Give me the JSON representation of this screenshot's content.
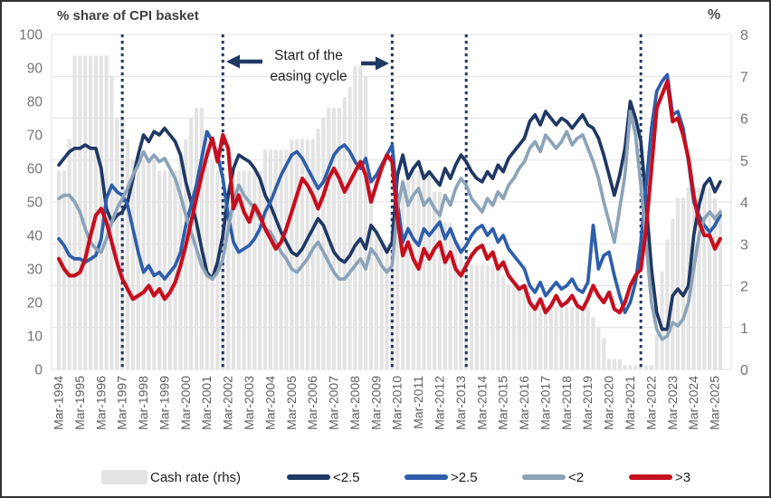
{
  "header": {
    "left_title": "% share of CPI basket",
    "right_title": "%"
  },
  "annotation": {
    "line1": "Start of the",
    "line2": "easing cycle"
  },
  "legend": {
    "position": "bottom",
    "items": [
      {
        "key": "cash_rate",
        "label": "Cash rate (rhs)",
        "type": "bar",
        "color": "#e4e4e4"
      },
      {
        "key": "lt_2_5",
        "label": "<2.5",
        "type": "line",
        "color": "#1f3864"
      },
      {
        "key": "gt_2_5",
        "label": ">2.5",
        "type": "line",
        "color": "#2e5eaa"
      },
      {
        "key": "lt_2",
        "label": "<2",
        "type": "line",
        "color": "#8ca3b8"
      },
      {
        "key": "gt_3",
        "label": ">3",
        "type": "line",
        "color": "#c50f1f"
      }
    ]
  },
  "colors": {
    "gridline": "#e1e1e1",
    "vline": "#1f3864",
    "arrow": "#1f3864",
    "tick_text": "#757575",
    "x_tick_text": "#5f5f5f"
  },
  "chart_data": {
    "type": "line",
    "subtype": "quarterly lines with cash-rate bar shading",
    "x_frequency": "quarterly",
    "x_start": "Mar-1994",
    "x_end": "Jun-2025",
    "grid": "horizontal",
    "legend_position": "bottom",
    "x_tick_labels": [
      "Mar-1994",
      "Mar-1995",
      "Mar-1996",
      "Mar-1997",
      "Mar-1998",
      "Mar-1999",
      "Mar-2000",
      "Mar-2001",
      "Mar-2002",
      "Mar-2003",
      "Mar-2004",
      "Mar-2005",
      "Mar-2006",
      "Mar-2007",
      "Mar-2008",
      "Mar-2009",
      "Mar-2010",
      "Mar-2011",
      "Mar-2012",
      "Mar-2013",
      "Mar-2014",
      "Mar-2015",
      "Mar-2016",
      "Mar-2017",
      "Mar-2018",
      "Mar-2019",
      "Mar-2020",
      "Mar-2021",
      "Mar-2022",
      "Mar-2023",
      "Mar-2024",
      "Mar-2025"
    ],
    "left_axis": {
      "title": "% share of CPI basket",
      "range": [
        0,
        100
      ],
      "ticks": [
        0,
        10,
        20,
        30,
        40,
        50,
        60,
        70,
        80,
        90,
        100
      ]
    },
    "right_axis": {
      "title": "%",
      "range": [
        0,
        8
      ],
      "ticks": [
        0,
        1,
        2,
        3,
        4,
        5,
        6,
        7,
        8
      ]
    },
    "vlines": {
      "style": "dotted",
      "color": "#1f3864",
      "quarter_indices": [
        12,
        31,
        63,
        77,
        110
      ],
      "at_labels": [
        "Mar-1997",
        "Dec-2001",
        "Dec-2009",
        "Jun-2013",
        "Sep-2021"
      ]
    },
    "annotation": {
      "text": "Start of the easing cycle",
      "arrow_targets": [
        "Dec-2001",
        "Dec-2009"
      ]
    },
    "series": [
      {
        "key": "cash_rate",
        "name": "Cash rate (rhs)",
        "type": "bar",
        "axis": "right",
        "color": "#e4e4e4",
        "values": [
          4.75,
          4.75,
          5.5,
          7.5,
          7.5,
          7.5,
          7.5,
          7.5,
          7.5,
          7.5,
          7.0,
          6.0,
          6.0,
          5.5,
          5.0,
          5.0,
          5.0,
          5.0,
          5.0,
          4.75,
          4.75,
          4.75,
          4.75,
          5.0,
          5.5,
          6.0,
          6.25,
          6.25,
          5.5,
          5.0,
          4.75,
          4.25,
          4.25,
          4.75,
          4.75,
          4.75,
          4.75,
          4.75,
          4.75,
          5.25,
          5.25,
          5.25,
          5.25,
          5.25,
          5.5,
          5.5,
          5.5,
          5.5,
          5.5,
          5.75,
          6.0,
          6.25,
          6.25,
          6.25,
          6.5,
          6.75,
          7.25,
          7.25,
          7.0,
          4.25,
          3.25,
          3.0,
          3.0,
          3.75,
          4.0,
          4.5,
          4.5,
          4.75,
          4.75,
          4.75,
          4.75,
          4.25,
          4.25,
          3.5,
          3.5,
          3.0,
          3.0,
          2.75,
          2.5,
          2.5,
          2.5,
          2.5,
          2.5,
          2.5,
          2.25,
          2.0,
          2.0,
          2.0,
          2.0,
          1.75,
          1.5,
          1.5,
          1.5,
          1.5,
          1.5,
          1.5,
          1.5,
          1.5,
          1.5,
          1.5,
          1.5,
          1.25,
          1.0,
          0.75,
          0.25,
          0.25,
          0.25,
          0.1,
          0.1,
          0.1,
          0.1,
          0.1,
          0.1,
          0.85,
          2.35,
          3.1,
          3.6,
          4.1,
          4.1,
          4.35,
          4.35,
          4.35,
          4.35,
          4.35,
          4.1,
          3.85
        ]
      },
      {
        "key": "lt_2_5",
        "name": "<2.5",
        "type": "line",
        "axis": "left",
        "color": "#1f3864",
        "values": [
          61,
          63,
          65,
          66,
          66,
          67,
          66,
          66,
          60,
          48,
          44,
          46,
          47,
          50,
          57,
          64,
          70,
          68,
          71,
          70,
          72,
          70,
          68,
          64,
          56,
          50,
          44,
          36,
          29,
          27,
          32,
          40,
          52,
          60,
          64,
          63,
          62,
          60,
          57,
          52,
          49,
          45,
          41,
          38,
          35,
          34,
          36,
          39,
          42,
          45,
          43,
          39,
          35,
          33,
          32,
          34,
          37,
          39,
          36,
          43,
          41,
          38,
          35,
          38,
          58,
          64,
          57,
          60,
          62,
          57,
          59,
          57,
          55,
          60,
          57,
          61,
          64,
          62,
          59,
          57,
          56,
          59,
          57,
          61,
          59,
          63,
          65,
          67,
          69,
          74,
          76,
          73,
          77,
          75,
          73,
          75,
          74,
          72,
          74,
          76,
          73,
          72,
          69,
          64,
          58,
          52,
          58,
          66,
          80,
          75,
          68,
          50,
          30,
          17,
          12,
          12,
          22,
          24,
          22,
          25,
          40,
          49,
          55,
          57,
          53,
          56
        ]
      },
      {
        "key": "gt_2_5",
        "name": ">2.5",
        "type": "line",
        "axis": "left",
        "color": "#2e5eaa",
        "values": [
          39,
          37,
          34,
          33,
          33,
          32,
          33,
          34,
          39,
          51,
          55,
          53,
          52,
          49,
          42,
          35,
          29,
          31,
          28,
          29,
          27,
          29,
          31,
          35,
          43,
          49,
          55,
          63,
          71,
          68,
          64,
          57,
          46,
          38,
          35,
          36,
          37,
          39,
          42,
          47,
          50,
          54,
          58,
          61,
          64,
          65,
          63,
          60,
          57,
          54,
          56,
          60,
          64,
          66,
          67,
          65,
          62,
          60,
          63,
          56,
          58,
          61,
          64,
          67,
          50,
          38,
          42,
          39,
          37,
          42,
          40,
          42,
          44,
          39,
          42,
          38,
          35,
          37,
          40,
          42,
          43,
          40,
          42,
          38,
          40,
          36,
          34,
          32,
          30,
          25,
          23,
          26,
          22,
          24,
          26,
          24,
          25,
          27,
          24,
          23,
          26,
          43,
          30,
          34,
          35,
          28,
          22,
          17,
          20,
          26,
          38,
          55,
          72,
          83,
          86,
          88,
          76,
          77,
          72,
          62,
          50,
          46,
          43,
          41,
          43,
          46
        ]
      },
      {
        "key": "lt_2",
        "name": "<2",
        "type": "line",
        "axis": "left",
        "color": "#8ca3b8",
        "values": [
          51,
          52,
          52,
          50,
          47,
          42,
          38,
          36,
          35,
          39,
          44,
          48,
          51,
          54,
          58,
          61,
          65,
          62,
          64,
          62,
          63,
          60,
          57,
          52,
          46,
          41,
          36,
          31,
          28,
          27,
          29,
          33,
          42,
          50,
          55,
          52,
          50,
          48,
          45,
          42,
          41,
          38,
          35,
          33,
          30,
          29,
          31,
          33,
          36,
          38,
          35,
          32,
          29,
          27,
          27,
          29,
          31,
          33,
          30,
          36,
          34,
          31,
          29,
          31,
          48,
          56,
          49,
          52,
          54,
          49,
          51,
          48,
          46,
          52,
          49,
          54,
          57,
          55,
          51,
          49,
          47,
          51,
          49,
          53,
          51,
          55,
          57,
          60,
          62,
          66,
          68,
          65,
          70,
          68,
          66,
          68,
          71,
          67,
          69,
          70,
          66,
          62,
          57,
          50,
          44,
          38,
          48,
          58,
          77,
          70,
          55,
          38,
          20,
          12,
          9,
          10,
          14,
          13,
          15,
          20,
          30,
          40,
          45,
          47,
          45,
          47
        ]
      },
      {
        "key": "gt_3",
        "name": ">3",
        "type": "line",
        "axis": "left",
        "color": "#c50f1f",
        "values": [
          33,
          30,
          28,
          28,
          29,
          33,
          40,
          46,
          48,
          44,
          38,
          32,
          27,
          24,
          21,
          22,
          23,
          25,
          22,
          24,
          21,
          23,
          26,
          31,
          37,
          44,
          51,
          58,
          64,
          69,
          62,
          70,
          66,
          48,
          52,
          47,
          44,
          49,
          46,
          42,
          39,
          36,
          38,
          42,
          47,
          52,
          57,
          55,
          52,
          48,
          52,
          57,
          60,
          57,
          53,
          56,
          59,
          62,
          58,
          50,
          55,
          60,
          64,
          62,
          45,
          34,
          38,
          33,
          30,
          36,
          33,
          36,
          38,
          32,
          35,
          30,
          28,
          31,
          34,
          36,
          37,
          33,
          35,
          30,
          32,
          28,
          26,
          24,
          25,
          20,
          18,
          21,
          17,
          19,
          22,
          19,
          20,
          22,
          19,
          18,
          21,
          25,
          22,
          20,
          23,
          18,
          17,
          20,
          25,
          28,
          30,
          42,
          60,
          78,
          82,
          86,
          74,
          75,
          70,
          63,
          52,
          44,
          40,
          40,
          36,
          39
        ]
      }
    ]
  }
}
